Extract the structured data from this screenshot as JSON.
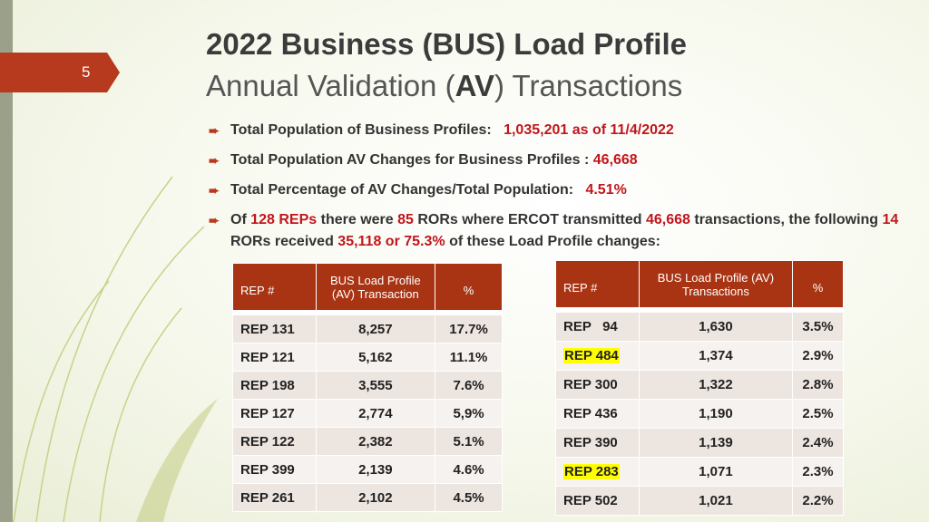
{
  "slide": {
    "page_number": "5",
    "title_line1": "2022 Business (BUS) Load Profile",
    "title_line2_pre": "Annual Validation (",
    "title_line2_bold": "AV",
    "title_line2_post": ") Transactions"
  },
  "bullets": {
    "b1_label": "Total Population of Business Profiles:",
    "b1_value": "1,035,201 as of 11/4/2022",
    "b2_label": "Total Population AV Changes for Business Profiles :",
    "b2_value": "46,668",
    "b3_label": "Total Percentage of AV Changes/Total Population:",
    "b3_value": "4.51%",
    "b4_t1": "Of",
    "b4_v1": "128 REPs",
    "b4_t2": "there were",
    "b4_v2": "85",
    "b4_t3": "RORs where ERCOT transmitted",
    "b4_v3": "46,668",
    "b4_t4": "transactions, the following",
    "b4_v4": "14",
    "b4_t5": "RORs received",
    "b4_v5": "35,118 or 75.3%",
    "b4_t6": "of these Load Profile changes:"
  },
  "table_left": {
    "headers": [
      "REP #",
      "BUS Load Profile (AV) Transaction",
      "%"
    ],
    "rows": [
      {
        "rep": "REP 131",
        "count": "8,257",
        "pct": "17.7%"
      },
      {
        "rep": "REP 121",
        "count": "5,162",
        "pct": "11.1%"
      },
      {
        "rep": "REP 198",
        "count": "3,555",
        "pct": "7.6%"
      },
      {
        "rep": "REP 127",
        "count": "2,774",
        "pct": "5,9%"
      },
      {
        "rep": "REP 122",
        "count": "2,382",
        "pct": "5.1%"
      },
      {
        "rep": "REP 399",
        "count": "2,139",
        "pct": "4.6%"
      },
      {
        "rep": "REP 261",
        "count": "2,102",
        "pct": "4.5%"
      }
    ]
  },
  "table_right": {
    "headers": [
      "REP #",
      "BUS Load Profile (AV)  Transactions",
      "%"
    ],
    "rows": [
      {
        "rep": "REP   94",
        "count": "1,630",
        "pct": "3.5%"
      },
      {
        "rep": "REP 484",
        "count": "1,374",
        "pct": "2.9%",
        "highlight": "#ffff00"
      },
      {
        "rep": "REP 300",
        "count": "1,322",
        "pct": "2.8%"
      },
      {
        "rep": "REP 436",
        "count": "1,190",
        "pct": "2.5%"
      },
      {
        "rep": "REP 390",
        "count": "1,139",
        "pct": "2.4%"
      },
      {
        "rep": "REP 283",
        "count": "1,071",
        "pct": "2.3%",
        "highlight": "#ffff00"
      },
      {
        "rep": "REP 502",
        "count": "1,021",
        "pct": "2.2%"
      }
    ]
  },
  "colors": {
    "accent": "#b83a1e",
    "header_bg": "#a93413",
    "value_red": "#c0161c",
    "highlight": "#ffff00"
  }
}
